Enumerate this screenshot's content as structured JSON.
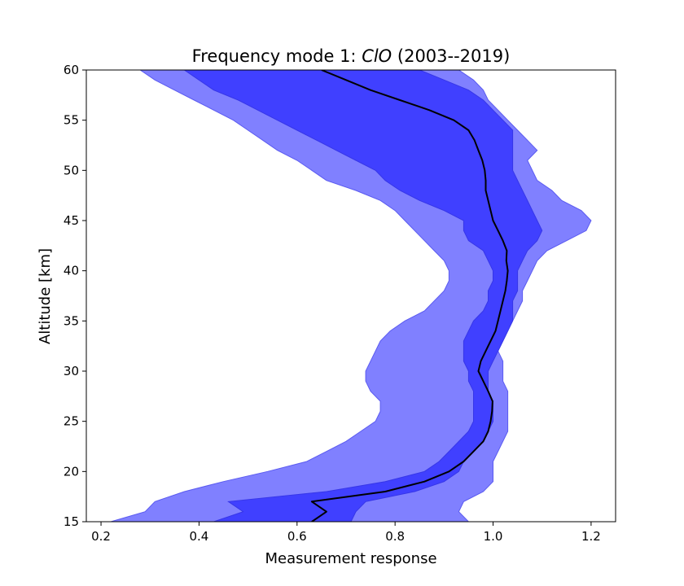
{
  "chart_data": {
    "type": "area",
    "title_prefix": "Frequency mode 1: ",
    "title_italic": "ClO",
    "title_suffix": " (2003--2019)",
    "xlabel": "Measurement response",
    "ylabel": "Altitude [km]",
    "xlim": [
      0.17,
      1.25
    ],
    "ylim": [
      15,
      60
    ],
    "xticks": [
      0.2,
      0.4,
      0.6,
      0.8,
      1.0,
      1.2
    ],
    "xtick_labels": [
      "0.2",
      "0.4",
      "0.6",
      "0.8",
      "1.0",
      "1.2"
    ],
    "yticks": [
      15,
      20,
      25,
      30,
      35,
      40,
      45,
      50,
      55,
      60
    ],
    "ytick_labels": [
      "15",
      "20",
      "25",
      "30",
      "35",
      "40",
      "45",
      "50",
      "55",
      "60"
    ],
    "grid": false,
    "colors": {
      "outer_band": "#8080ff",
      "inner_band": "#4040ff",
      "band_edge": "#5a5af0",
      "median_line": "#000000"
    },
    "series": [
      {
        "role": "outer_band",
        "y": [
          15,
          16,
          17,
          18,
          19,
          20,
          21,
          22,
          23,
          24,
          25,
          26,
          27,
          28,
          29,
          30,
          31,
          32,
          33,
          34,
          35,
          36,
          37,
          38,
          39,
          40,
          41,
          42,
          43,
          44,
          45,
          46,
          47,
          48,
          49,
          50,
          51,
          52,
          53,
          54,
          55,
          56,
          57,
          58,
          59,
          60
        ],
        "x_low": [
          0.22,
          0.29,
          0.31,
          0.37,
          0.45,
          0.54,
          0.62,
          0.66,
          0.7,
          0.73,
          0.76,
          0.77,
          0.77,
          0.75,
          0.74,
          0.74,
          0.75,
          0.76,
          0.77,
          0.79,
          0.82,
          0.86,
          0.88,
          0.9,
          0.91,
          0.91,
          0.9,
          0.88,
          0.86,
          0.84,
          0.82,
          0.8,
          0.77,
          0.72,
          0.66,
          0.63,
          0.6,
          0.56,
          0.53,
          0.5,
          0.47,
          0.43,
          0.39,
          0.35,
          0.31,
          0.28
        ],
        "x_high": [
          0.95,
          0.93,
          0.94,
          0.98,
          1.0,
          1.0,
          1.0,
          1.01,
          1.02,
          1.03,
          1.03,
          1.03,
          1.03,
          1.03,
          1.02,
          1.02,
          1.02,
          1.01,
          1.02,
          1.03,
          1.04,
          1.05,
          1.06,
          1.06,
          1.07,
          1.08,
          1.09,
          1.11,
          1.15,
          1.19,
          1.2,
          1.18,
          1.14,
          1.12,
          1.09,
          1.08,
          1.07,
          1.09,
          1.07,
          1.05,
          1.03,
          1.01,
          0.99,
          0.98,
          0.96,
          0.93
        ]
      },
      {
        "role": "inner_band",
        "y": [
          15,
          16,
          17,
          18,
          19,
          20,
          21,
          22,
          23,
          24,
          25,
          26,
          27,
          28,
          29,
          30,
          31,
          32,
          33,
          34,
          35,
          36,
          37,
          38,
          39,
          40,
          41,
          42,
          43,
          44,
          45,
          46,
          47,
          48,
          49,
          50,
          51,
          52,
          53,
          54,
          55,
          56,
          57,
          58,
          59,
          60
        ],
        "x_low": [
          0.43,
          0.49,
          0.46,
          0.66,
          0.78,
          0.86,
          0.89,
          0.91,
          0.93,
          0.95,
          0.96,
          0.96,
          0.96,
          0.96,
          0.95,
          0.95,
          0.94,
          0.94,
          0.94,
          0.95,
          0.96,
          0.98,
          0.99,
          0.99,
          1.0,
          1.0,
          0.99,
          0.98,
          0.95,
          0.94,
          0.94,
          0.9,
          0.85,
          0.81,
          0.78,
          0.76,
          0.72,
          0.68,
          0.64,
          0.6,
          0.56,
          0.52,
          0.48,
          0.43,
          0.4,
          0.37
        ],
        "x_high": [
          0.71,
          0.72,
          0.74,
          0.84,
          0.9,
          0.93,
          0.94,
          0.96,
          0.98,
          0.99,
          1.0,
          1.0,
          1.0,
          0.99,
          0.99,
          0.99,
          1.0,
          1.01,
          1.02,
          1.03,
          1.04,
          1.04,
          1.04,
          1.05,
          1.05,
          1.05,
          1.06,
          1.07,
          1.09,
          1.1,
          1.09,
          1.08,
          1.07,
          1.06,
          1.05,
          1.04,
          1.04,
          1.04,
          1.04,
          1.04,
          1.02,
          1.0,
          0.98,
          0.95,
          0.9,
          0.85
        ]
      },
      {
        "role": "median",
        "y": [
          15,
          16,
          17,
          18,
          19,
          20,
          21,
          22,
          23,
          24,
          25,
          26,
          27,
          28,
          29,
          30,
          31,
          32,
          33,
          34,
          35,
          36,
          37,
          38,
          39,
          40,
          41,
          42,
          43,
          44,
          45,
          46,
          47,
          48,
          49,
          50,
          51,
          52,
          53,
          54,
          55,
          56,
          57,
          58,
          59,
          60
        ],
        "x": [
          0.63,
          0.66,
          0.63,
          0.78,
          0.86,
          0.91,
          0.94,
          0.96,
          0.98,
          0.99,
          0.995,
          0.998,
          0.999,
          0.99,
          0.98,
          0.97,
          0.975,
          0.985,
          0.995,
          1.005,
          1.01,
          1.015,
          1.02,
          1.025,
          1.028,
          1.03,
          1.027,
          1.028,
          1.02,
          1.01,
          1.0,
          0.995,
          0.99,
          0.985,
          0.985,
          0.983,
          0.978,
          0.97,
          0.962,
          0.95,
          0.92,
          0.87,
          0.81,
          0.75,
          0.7,
          0.65
        ]
      }
    ]
  }
}
